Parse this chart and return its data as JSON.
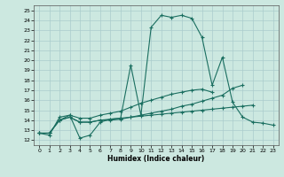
{
  "title": "",
  "xlabel": "Humidex (Indice chaleur)",
  "bg_color": "#cce8e0",
  "grid_color": "#aacccc",
  "line_color": "#1a6e60",
  "xlim": [
    -0.5,
    23.5
  ],
  "ylim": [
    11.5,
    25.5
  ],
  "xticks": [
    0,
    1,
    2,
    3,
    4,
    5,
    6,
    7,
    8,
    9,
    10,
    11,
    12,
    13,
    14,
    15,
    16,
    17,
    18,
    19,
    20,
    21,
    22,
    23
  ],
  "yticks": [
    12,
    13,
    14,
    15,
    16,
    17,
    18,
    19,
    20,
    21,
    22,
    23,
    24,
    25
  ],
  "series": [
    {
      "x": [
        0,
        1,
        2,
        3,
        4,
        5,
        6,
        7,
        8,
        9,
        10,
        11,
        12,
        13,
        14,
        15,
        16,
        17,
        18,
        19,
        20,
        21,
        22,
        23
      ],
      "y": [
        12.7,
        12.5,
        14.3,
        14.5,
        12.2,
        12.5,
        13.8,
        14.1,
        14.2,
        19.5,
        14.5,
        23.3,
        24.5,
        24.3,
        24.5,
        24.2,
        22.3,
        17.5,
        20.3,
        15.8,
        14.3,
        13.8,
        13.7,
        13.5
      ]
    },
    {
      "x": [
        0,
        1,
        2,
        3,
        4,
        5,
        6,
        7,
        8,
        9,
        10,
        11,
        12,
        13,
        14,
        15,
        16,
        17,
        18,
        19,
        20,
        21,
        22,
        23
      ],
      "y": [
        12.7,
        12.7,
        14.0,
        14.3,
        13.8,
        13.8,
        14.0,
        14.0,
        14.1,
        14.3,
        14.5,
        14.7,
        14.9,
        15.1,
        15.4,
        15.6,
        15.9,
        16.2,
        16.5,
        17.2,
        17.5,
        null,
        null,
        null
      ]
    },
    {
      "x": [
        0,
        1,
        2,
        3,
        4,
        5,
        6,
        7,
        8,
        9,
        10,
        11,
        12,
        13,
        14,
        15,
        16,
        17,
        18,
        19,
        20,
        21,
        22,
        23
      ],
      "y": [
        12.7,
        12.7,
        14.0,
        14.3,
        13.8,
        13.8,
        14.0,
        14.1,
        14.2,
        14.3,
        14.4,
        14.5,
        14.6,
        14.7,
        14.8,
        14.9,
        15.0,
        15.1,
        15.2,
        15.3,
        15.4,
        15.5,
        null,
        null
      ]
    },
    {
      "x": [
        0,
        1,
        2,
        3,
        4,
        5,
        6,
        7,
        8,
        9,
        10,
        11,
        12,
        13,
        14,
        15,
        16,
        17,
        18,
        19,
        20,
        21,
        22,
        23
      ],
      "y": [
        12.7,
        12.7,
        14.0,
        14.5,
        14.2,
        14.2,
        14.5,
        14.7,
        14.9,
        15.3,
        15.7,
        16.0,
        16.3,
        16.6,
        16.8,
        17.0,
        17.1,
        16.8,
        null,
        null,
        null,
        null,
        null,
        null
      ]
    }
  ]
}
